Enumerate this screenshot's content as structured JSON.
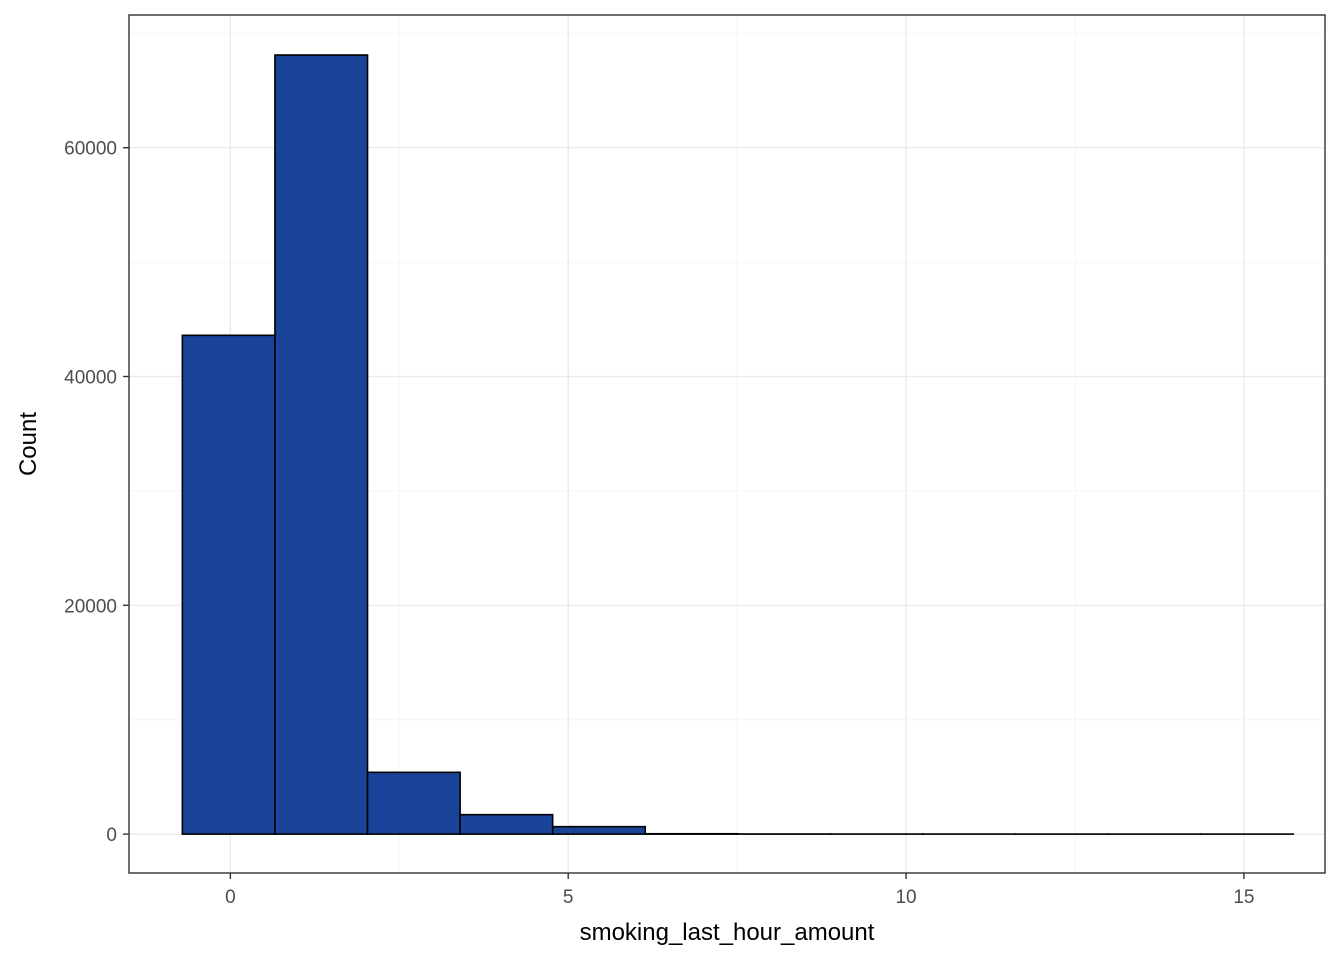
{
  "chart_data": {
    "type": "bar",
    "subtype": "histogram",
    "xlabel": "smoking_last_hour_amount",
    "ylabel": "Count",
    "xlim": [
      -1.5,
      16.2
    ],
    "ylim": [
      -3400,
      71600
    ],
    "x_ticks": [
      0,
      5,
      10,
      15
    ],
    "x_tick_labels": [
      "0",
      "5",
      "10",
      "15"
    ],
    "y_ticks": [
      0,
      20000,
      40000,
      60000
    ],
    "y_tick_labels": [
      "0",
      "20000",
      "40000",
      "60000"
    ],
    "grid": true,
    "bins": [
      {
        "x0": -0.71,
        "x1": 0.66,
        "count": 43600
      },
      {
        "x0": 0.66,
        "x1": 2.03,
        "count": 68100
      },
      {
        "x0": 2.03,
        "x1": 3.4,
        "count": 5400
      },
      {
        "x0": 3.4,
        "x1": 4.77,
        "count": 1700
      },
      {
        "x0": 4.77,
        "x1": 6.14,
        "count": 650
      },
      {
        "x0": 6.14,
        "x1": 7.51,
        "count": 30
      },
      {
        "x0": 7.51,
        "x1": 8.88,
        "count": 10
      },
      {
        "x0": 8.88,
        "x1": 10.25,
        "count": 5
      },
      {
        "x0": 10.25,
        "x1": 11.62,
        "count": 3
      },
      {
        "x0": 11.62,
        "x1": 12.99,
        "count": 2
      },
      {
        "x0": 12.99,
        "x1": 14.36,
        "count": 1
      },
      {
        "x0": 14.36,
        "x1": 15.73,
        "count": 1
      }
    ],
    "colors": {
      "bar_fill": "#1a4499",
      "bar_stroke": "#000000",
      "panel_border": "#333333",
      "grid_major": "#ebebeb",
      "grid_minor": "#f5f5f5"
    }
  }
}
